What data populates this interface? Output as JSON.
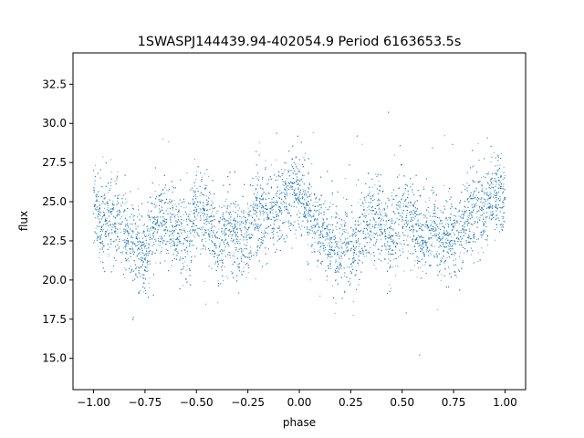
{
  "chart_data": {
    "type": "scatter",
    "title": "1SWASPJ144439.94-402054.9 Period 6163653.5s",
    "xlabel": "phase",
    "ylabel": "flux",
    "xlim": [
      -1.1,
      1.1
    ],
    "ylim": [
      13.0,
      34.5
    ],
    "x_ticks": [
      -1.0,
      -0.75,
      -0.5,
      -0.25,
      0.0,
      0.25,
      0.5,
      0.75,
      1.0
    ],
    "x_tick_labels": [
      "−1.00",
      "−0.75",
      "−0.50",
      "−0.25",
      "0.00",
      "0.25",
      "0.50",
      "0.75",
      "1.00"
    ],
    "y_ticks": [
      15.0,
      17.5,
      20.0,
      22.5,
      25.0,
      27.5,
      30.0,
      32.5
    ],
    "y_tick_labels": [
      "15.0",
      "17.5",
      "20.0",
      "22.5",
      "25.0",
      "27.5",
      "30.0",
      "32.5"
    ],
    "grid": false,
    "legend": "none",
    "marker_color": "#1f77b4",
    "series": [
      {
        "x": [
          -1.0,
          -0.95,
          -0.9,
          -0.85,
          -0.8,
          -0.75,
          -0.7,
          -0.65,
          -0.6,
          -0.55,
          -0.5,
          -0.45,
          -0.4,
          -0.35,
          -0.3,
          -0.25,
          -0.2,
          -0.15,
          -0.1,
          -0.05,
          0.0,
          0.05,
          0.1,
          0.15,
          0.2,
          0.25,
          0.3,
          0.35,
          0.4,
          0.45,
          0.5,
          0.55,
          0.6,
          0.65,
          0.7,
          0.75,
          0.8,
          0.85,
          0.9,
          0.95,
          1.0
        ],
        "y": [
          25.0,
          23.5,
          24.0,
          23.0,
          22.0,
          21.8,
          23.5,
          24.0,
          23.5,
          22.5,
          24.5,
          24.0,
          22.0,
          23.5,
          22.5,
          23.0,
          24.5,
          24.0,
          24.5,
          25.5,
          26.0,
          24.0,
          23.0,
          22.5,
          22.0,
          21.8,
          23.0,
          24.0,
          23.5,
          22.5,
          24.5,
          24.0,
          22.5,
          23.5,
          22.5,
          22.5,
          24.0,
          24.0,
          24.5,
          25.5,
          25.0
        ]
      }
    ]
  }
}
